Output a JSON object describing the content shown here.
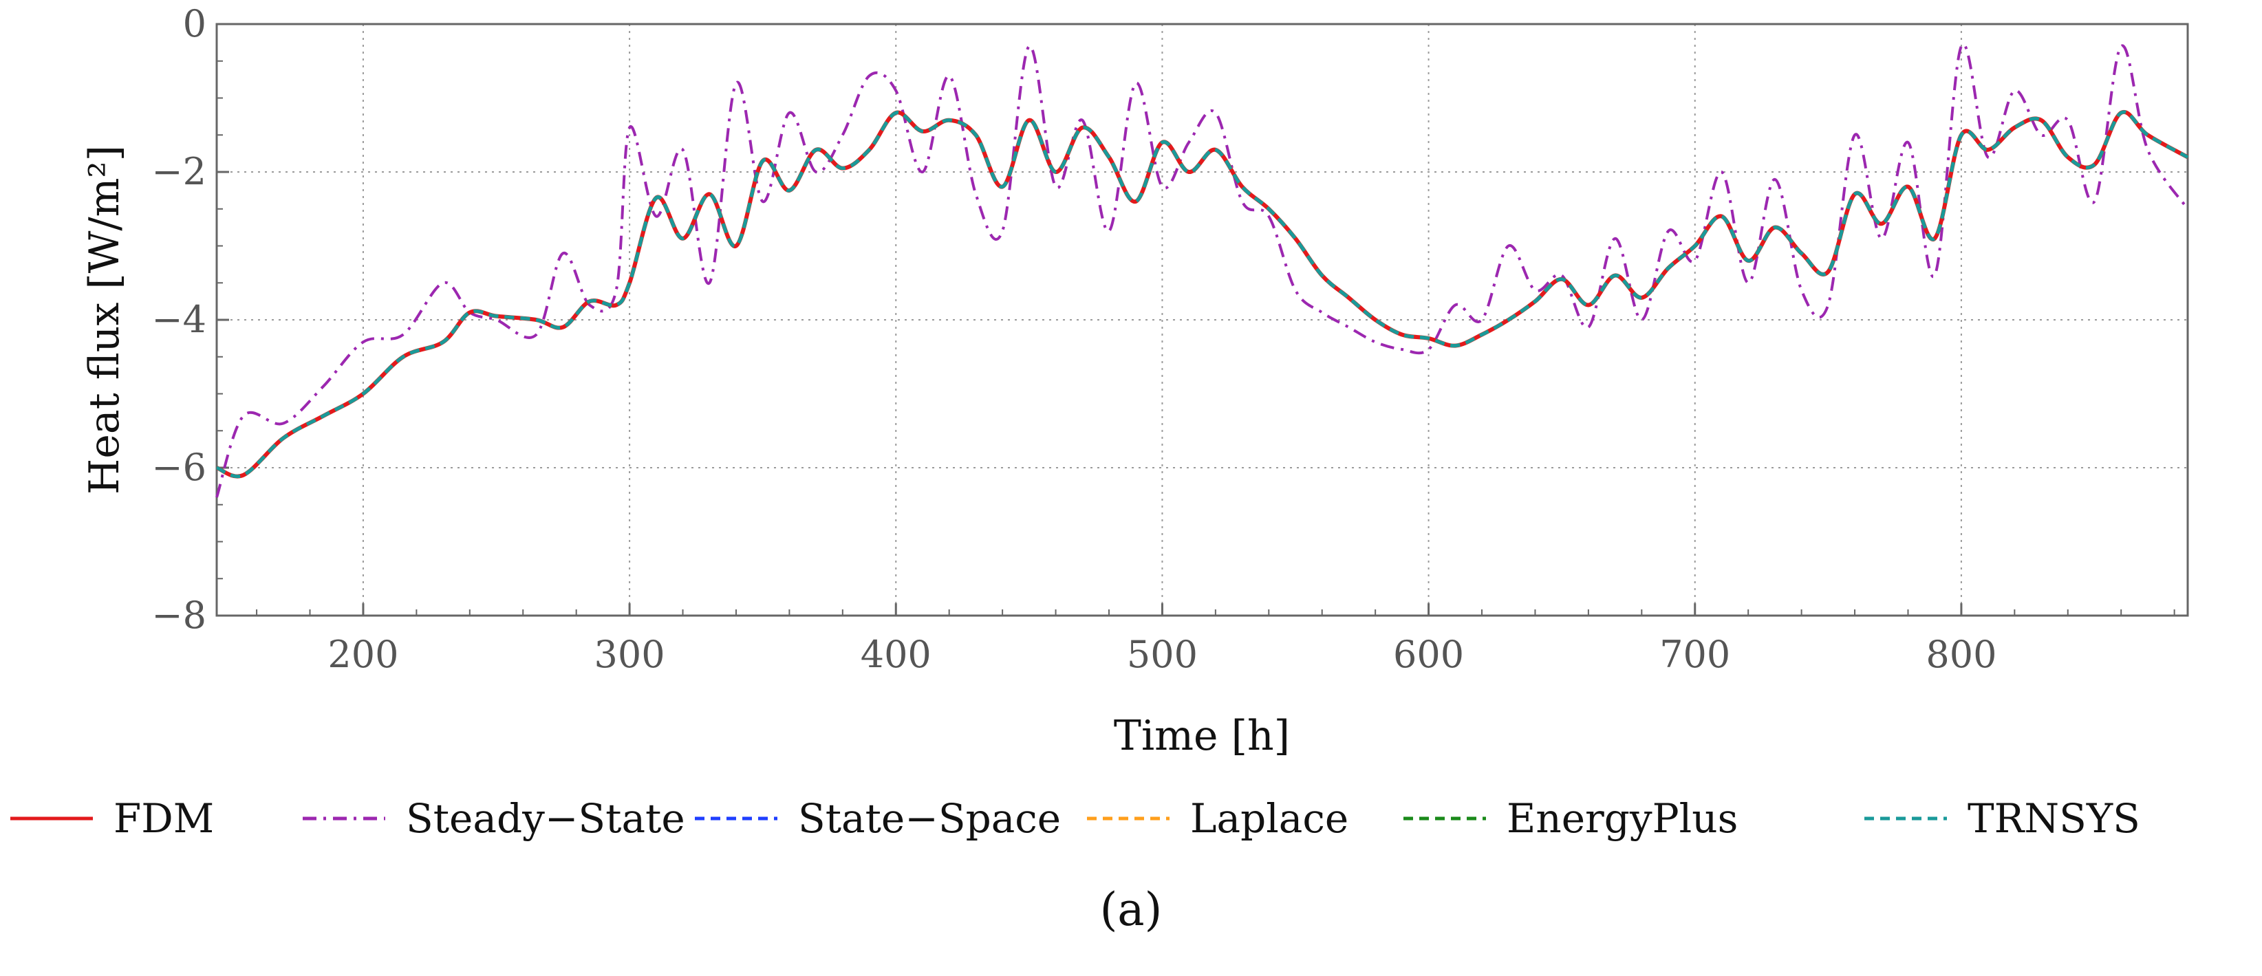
{
  "chart_data": {
    "type": "line",
    "title": "",
    "xlabel": "Time [h]",
    "ylabel": "Heat flux [W/m²]",
    "xlim": [
      145,
      885
    ],
    "ylim": [
      -8,
      0
    ],
    "xticks": [
      200,
      300,
      400,
      500,
      600,
      700,
      800
    ],
    "xtick_labels": [
      "200",
      "300",
      "400",
      "500",
      "600",
      "700",
      "800"
    ],
    "yticks": [
      0,
      -2,
      -4,
      -6,
      -8
    ],
    "ytick_labels": [
      "0",
      "−2",
      "−4",
      "−6",
      "−8"
    ],
    "grid": true,
    "legend_position": "bottom",
    "caption": "(a)",
    "x": [
      145,
      155,
      170,
      185,
      200,
      215,
      230,
      240,
      250,
      265,
      275,
      285,
      295,
      300,
      310,
      320,
      330,
      340,
      350,
      360,
      370,
      380,
      390,
      400,
      410,
      420,
      430,
      440,
      450,
      460,
      470,
      480,
      490,
      500,
      510,
      520,
      530,
      540,
      550,
      560,
      570,
      580,
      590,
      600,
      610,
      620,
      630,
      640,
      650,
      660,
      670,
      680,
      690,
      700,
      710,
      720,
      730,
      740,
      750,
      760,
      770,
      780,
      790,
      800,
      810,
      820,
      830,
      840,
      850,
      860,
      870,
      885
    ],
    "series": [
      {
        "name": "FDM",
        "color": "#e31a1c",
        "dash": "solid",
        "values": [
          -6.0,
          -6.1,
          -5.6,
          -5.3,
          -5.0,
          -4.5,
          -4.3,
          -3.9,
          -3.95,
          -4.0,
          -4.1,
          -3.75,
          -3.8,
          -3.5,
          -2.35,
          -2.9,
          -2.3,
          -3.0,
          -1.85,
          -2.25,
          -1.7,
          -1.95,
          -1.7,
          -1.2,
          -1.45,
          -1.3,
          -1.5,
          -2.2,
          -1.3,
          -2.0,
          -1.4,
          -1.8,
          -2.4,
          -1.6,
          -2.0,
          -1.7,
          -2.2,
          -2.5,
          -2.9,
          -3.4,
          -3.7,
          -4.0,
          -4.2,
          -4.25,
          -4.35,
          -4.2,
          -4.0,
          -3.75,
          -3.45,
          -3.8,
          -3.4,
          -3.7,
          -3.3,
          -3.0,
          -2.6,
          -3.2,
          -2.75,
          -3.1,
          -3.35,
          -2.3,
          -2.7,
          -2.2,
          -2.9,
          -1.5,
          -1.7,
          -1.4,
          -1.3,
          -1.8,
          -1.9,
          -1.2,
          -1.5,
          -1.8
        ]
      },
      {
        "name": "Steady−State",
        "color": "#9c27b0",
        "dash": "dashdot",
        "values": [
          -6.4,
          -5.3,
          -5.4,
          -4.9,
          -4.3,
          -4.2,
          -3.5,
          -3.9,
          -4.0,
          -4.2,
          -3.1,
          -3.8,
          -3.6,
          -1.4,
          -2.6,
          -1.7,
          -3.5,
          -0.8,
          -2.4,
          -1.2,
          -2.0,
          -1.5,
          -0.7,
          -0.9,
          -2.0,
          -0.7,
          -2.3,
          -2.8,
          -0.3,
          -2.2,
          -1.3,
          -2.8,
          -0.8,
          -2.2,
          -1.6,
          -1.2,
          -2.4,
          -2.6,
          -3.6,
          -3.9,
          -4.1,
          -4.3,
          -4.4,
          -4.4,
          -3.8,
          -4.0,
          -3.0,
          -3.6,
          -3.4,
          -4.1,
          -2.9,
          -4.0,
          -2.8,
          -3.2,
          -2.0,
          -3.5,
          -2.1,
          -3.6,
          -3.8,
          -1.5,
          -2.9,
          -1.6,
          -3.4,
          -0.3,
          -1.8,
          -0.9,
          -1.5,
          -1.3,
          -2.4,
          -0.3,
          -1.7,
          -2.5
        ]
      },
      {
        "name": "State−Space",
        "color": "#1f3fff",
        "dash": "dashed",
        "values": [
          -6.0,
          -6.1,
          -5.6,
          -5.3,
          -5.0,
          -4.5,
          -4.3,
          -3.9,
          -3.95,
          -4.0,
          -4.1,
          -3.75,
          -3.8,
          -3.5,
          -2.35,
          -2.9,
          -2.3,
          -3.0,
          -1.85,
          -2.25,
          -1.7,
          -1.95,
          -1.7,
          -1.2,
          -1.45,
          -1.3,
          -1.5,
          -2.2,
          -1.3,
          -2.0,
          -1.4,
          -1.8,
          -2.4,
          -1.6,
          -2.0,
          -1.7,
          -2.2,
          -2.5,
          -2.9,
          -3.4,
          -3.7,
          -4.0,
          -4.2,
          -4.25,
          -4.35,
          -4.2,
          -4.0,
          -3.75,
          -3.45,
          -3.8,
          -3.4,
          -3.7,
          -3.3,
          -3.0,
          -2.6,
          -3.2,
          -2.75,
          -3.1,
          -3.35,
          -2.3,
          -2.7,
          -2.2,
          -2.9,
          -1.5,
          -1.7,
          -1.4,
          -1.3,
          -1.8,
          -1.9,
          -1.2,
          -1.5,
          -1.8
        ]
      },
      {
        "name": "Laplace",
        "color": "#ff9f1c",
        "dash": "dashed",
        "values": [
          -6.0,
          -6.1,
          -5.6,
          -5.3,
          -5.0,
          -4.5,
          -4.3,
          -3.9,
          -3.95,
          -4.0,
          -4.1,
          -3.75,
          -3.8,
          -3.5,
          -2.35,
          -2.9,
          -2.3,
          -3.0,
          -1.85,
          -2.25,
          -1.7,
          -1.95,
          -1.7,
          -1.2,
          -1.45,
          -1.3,
          -1.5,
          -2.2,
          -1.3,
          -2.0,
          -1.4,
          -1.8,
          -2.4,
          -1.6,
          -2.0,
          -1.7,
          -2.2,
          -2.5,
          -2.9,
          -3.4,
          -3.7,
          -4.0,
          -4.2,
          -4.25,
          -4.35,
          -4.2,
          -4.0,
          -3.75,
          -3.45,
          -3.8,
          -3.4,
          -3.7,
          -3.3,
          -3.0,
          -2.6,
          -3.2,
          -2.75,
          -3.1,
          -3.35,
          -2.3,
          -2.7,
          -2.2,
          -2.9,
          -1.5,
          -1.7,
          -1.4,
          -1.3,
          -1.8,
          -1.9,
          -1.2,
          -1.5,
          -1.8
        ]
      },
      {
        "name": "EnergyPlus",
        "color": "#1a8a1a",
        "dash": "dashed",
        "values": [
          -6.0,
          -6.1,
          -5.6,
          -5.3,
          -5.0,
          -4.5,
          -4.3,
          -3.9,
          -3.95,
          -4.0,
          -4.1,
          -3.75,
          -3.8,
          -3.5,
          -2.35,
          -2.9,
          -2.3,
          -3.0,
          -1.85,
          -2.25,
          -1.7,
          -1.95,
          -1.7,
          -1.2,
          -1.45,
          -1.3,
          -1.5,
          -2.2,
          -1.3,
          -2.0,
          -1.4,
          -1.8,
          -2.4,
          -1.6,
          -2.0,
          -1.7,
          -2.2,
          -2.5,
          -2.9,
          -3.4,
          -3.7,
          -4.0,
          -4.2,
          -4.25,
          -4.35,
          -4.2,
          -4.0,
          -3.75,
          -3.45,
          -3.8,
          -3.4,
          -3.7,
          -3.3,
          -3.0,
          -2.6,
          -3.2,
          -2.75,
          -3.1,
          -3.35,
          -2.3,
          -2.7,
          -2.2,
          -2.9,
          -1.5,
          -1.7,
          -1.4,
          -1.3,
          -1.8,
          -1.9,
          -1.2,
          -1.5,
          -1.8
        ]
      },
      {
        "name": "TRNSYS",
        "color": "#1a9a9a",
        "dash": "dashed",
        "values": [
          -6.0,
          -6.1,
          -5.6,
          -5.3,
          -5.0,
          -4.5,
          -4.3,
          -3.9,
          -3.95,
          -4.0,
          -4.1,
          -3.75,
          -3.8,
          -3.5,
          -2.35,
          -2.9,
          -2.3,
          -3.0,
          -1.85,
          -2.25,
          -1.7,
          -1.95,
          -1.7,
          -1.2,
          -1.45,
          -1.3,
          -1.5,
          -2.2,
          -1.3,
          -2.0,
          -1.4,
          -1.8,
          -2.4,
          -1.6,
          -2.0,
          -1.7,
          -2.2,
          -2.5,
          -2.9,
          -3.4,
          -3.7,
          -4.0,
          -4.2,
          -4.25,
          -4.35,
          -4.2,
          -4.0,
          -3.75,
          -3.45,
          -3.8,
          -3.4,
          -3.7,
          -3.3,
          -3.0,
          -2.6,
          -3.2,
          -2.75,
          -3.1,
          -3.35,
          -2.3,
          -2.7,
          -2.2,
          -2.9,
          -1.5,
          -1.7,
          -1.4,
          -1.3,
          -1.8,
          -1.9,
          -1.2,
          -1.5,
          -1.8
        ]
      }
    ]
  }
}
